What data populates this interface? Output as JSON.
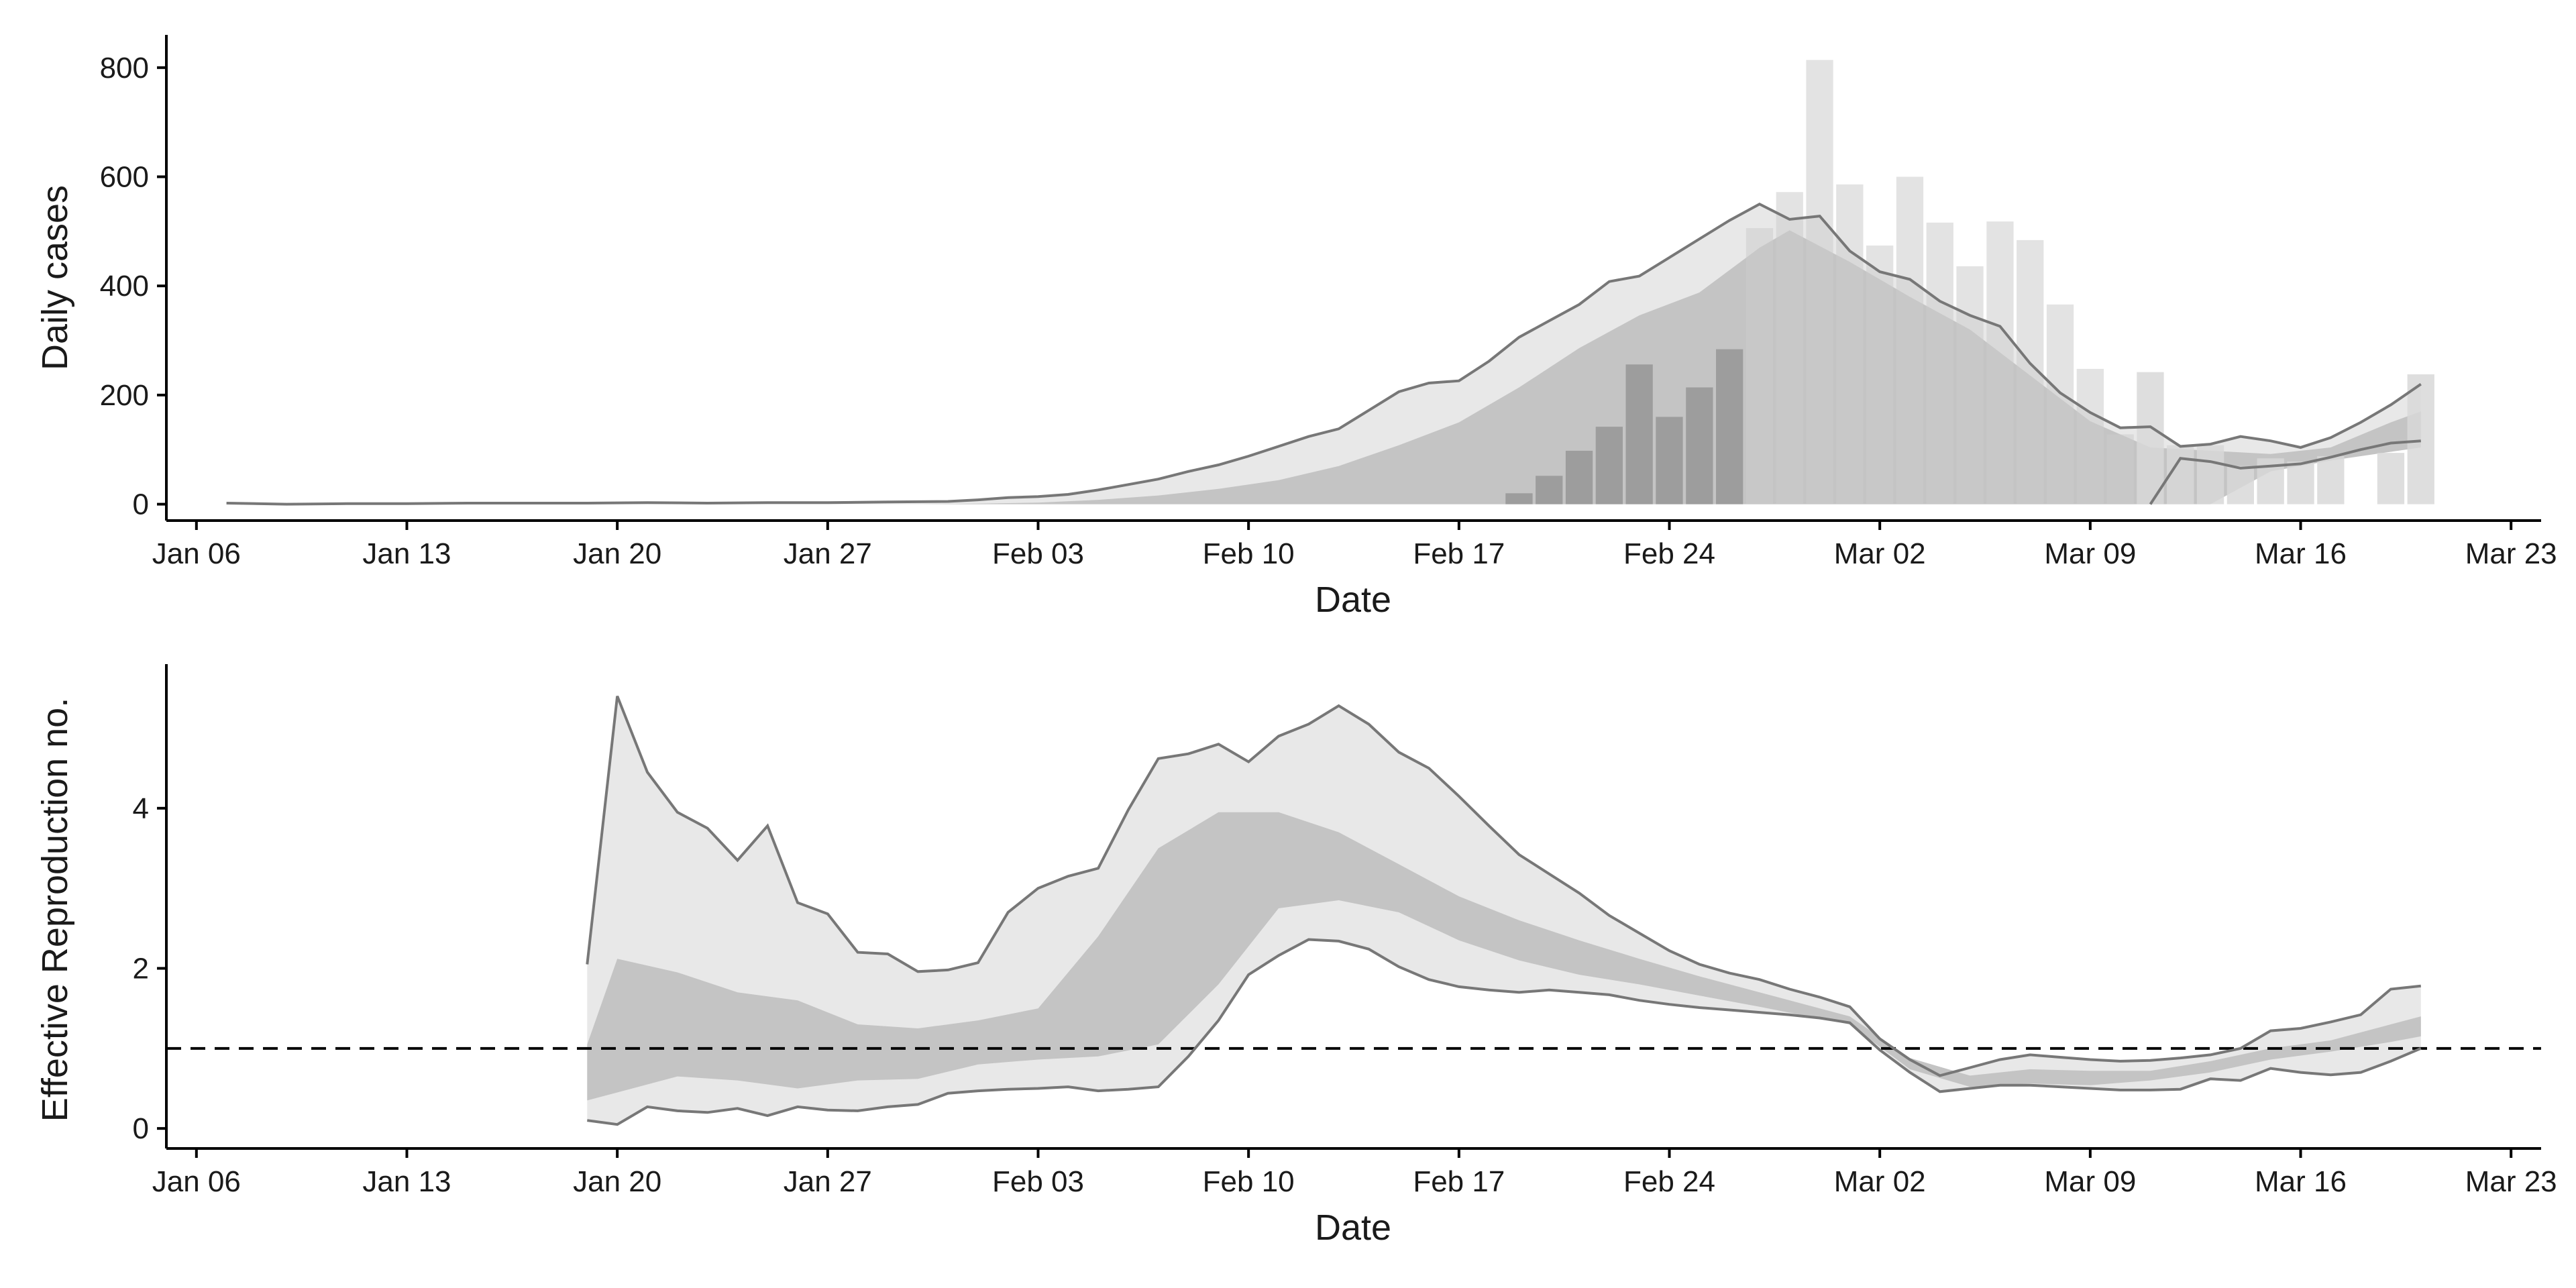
{
  "colors": {
    "background": "#ffffff",
    "axis": "#000000",
    "ci_outer": "#e8e8e8",
    "ci_inner": "#c4c4c4",
    "bound_line": "#777777",
    "bars_light": "#cccccc",
    "bars_dark": "#9d9d9d",
    "forecast": "#d8d8d8",
    "reference_line": "#000000"
  },
  "chart_data": [
    {
      "type": "bar",
      "panel": "top",
      "xlabel": "Date",
      "ylabel": "Daily cases",
      "x_type": "date",
      "xlim": [
        "2020-01-05",
        "2020-03-24"
      ],
      "ylim": [
        -30,
        860
      ],
      "x_ticks": [
        "2020-01-06",
        "2020-01-13",
        "2020-01-20",
        "2020-01-27",
        "2020-02-03",
        "2020-02-10",
        "2020-02-17",
        "2020-02-24",
        "2020-03-02",
        "2020-03-09",
        "2020-03-16",
        "2020-03-23"
      ],
      "x_tick_labels": [
        "Jan 06",
        "Jan 13",
        "Jan 20",
        "Jan 27",
        "Feb 03",
        "Feb 10",
        "Feb 17",
        "Feb 24",
        "Mar 02",
        "Mar 09",
        "Mar 16",
        "Mar 23"
      ],
      "y_ticks": [
        0,
        200,
        400,
        600,
        800
      ],
      "y_tick_labels": [
        "0",
        "200",
        "400",
        "600",
        "800"
      ],
      "grid": false,
      "legend": "none",
      "bars": {
        "dates": [
          "2020-02-19",
          "2020-02-20",
          "2020-02-21",
          "2020-02-22",
          "2020-02-23",
          "2020-02-24",
          "2020-02-25",
          "2020-02-26",
          "2020-02-27",
          "2020-02-28",
          "2020-02-29",
          "2020-03-01",
          "2020-03-02",
          "2020-03-03",
          "2020-03-04",
          "2020-03-05",
          "2020-03-06",
          "2020-03-07",
          "2020-03-08",
          "2020-03-09",
          "2020-03-10",
          "2020-03-11",
          "2020-03-12",
          "2020-03-13",
          "2020-03-14",
          "2020-03-15",
          "2020-03-16",
          "2020-03-17",
          "2020-03-18",
          "2020-03-19",
          "2020-03-20"
        ],
        "values": [
          20,
          52,
          98,
          142,
          256,
          160,
          214,
          284,
          506,
          572,
          814,
          586,
          474,
          600,
          516,
          436,
          518,
          484,
          366,
          248,
          128,
          242,
          108,
          108,
          70,
          84,
          78,
          88,
          0,
          94,
          238
        ]
      },
      "series": [
        {
          "role": "upper_bound",
          "x": [
            "2020-01-07",
            "2020-01-09",
            "2020-01-11",
            "2020-01-13",
            "2020-01-15",
            "2020-01-17",
            "2020-01-19",
            "2020-01-21",
            "2020-01-23",
            "2020-01-25",
            "2020-01-27",
            "2020-01-29",
            "2020-01-31",
            "2020-02-01",
            "2020-02-02",
            "2020-02-03",
            "2020-02-04",
            "2020-02-05",
            "2020-02-06",
            "2020-02-07",
            "2020-02-08",
            "2020-02-09",
            "2020-02-10",
            "2020-02-11",
            "2020-02-12",
            "2020-02-13",
            "2020-02-14",
            "2020-02-15",
            "2020-02-16",
            "2020-02-17",
            "2020-02-18",
            "2020-02-19",
            "2020-02-20",
            "2020-02-21",
            "2020-02-22",
            "2020-02-23",
            "2020-02-24",
            "2020-02-25",
            "2020-02-26",
            "2020-02-27",
            "2020-02-28",
            "2020-02-29",
            "2020-03-01",
            "2020-03-02",
            "2020-03-03",
            "2020-03-04",
            "2020-03-05",
            "2020-03-06",
            "2020-03-07",
            "2020-03-08",
            "2020-03-09",
            "2020-03-10",
            "2020-03-11",
            "2020-03-12",
            "2020-03-13",
            "2020-03-14",
            "2020-03-15",
            "2020-03-16",
            "2020-03-17",
            "2020-03-18",
            "2020-03-19",
            "2020-03-20"
          ],
          "values": [
            2,
            0,
            1,
            1,
            2,
            2,
            2,
            3,
            2,
            3,
            3,
            4,
            5,
            8,
            12,
            14,
            18,
            26,
            36,
            46,
            60,
            72,
            88,
            106,
            124,
            138,
            172,
            206,
            222,
            226,
            262,
            306,
            336,
            366,
            408,
            418,
            452,
            486,
            520,
            550,
            522,
            528,
            464,
            426,
            412,
            372,
            346,
            326,
            258,
            204,
            168,
            140,
            142,
            106,
            110,
            124,
            116,
            104,
            122,
            150,
            182,
            220
          ]
        },
        {
          "role": "lower_bound",
          "x": [
            "2020-03-11",
            "2020-03-12",
            "2020-03-13",
            "2020-03-14",
            "2020-03-15",
            "2020-03-16",
            "2020-03-17",
            "2020-03-18",
            "2020-03-19",
            "2020-03-20"
          ],
          "values": [
            0,
            84,
            78,
            66,
            70,
            74,
            86,
            100,
            112,
            116
          ]
        },
        {
          "role": "interval_50",
          "x": [
            "2020-01-30",
            "2020-02-01",
            "2020-02-03",
            "2020-02-05",
            "2020-02-07",
            "2020-02-09",
            "2020-02-11",
            "2020-02-13",
            "2020-02-15",
            "2020-02-17",
            "2020-02-19",
            "2020-02-21",
            "2020-02-23",
            "2020-02-25",
            "2020-02-27",
            "2020-02-28",
            "2020-03-01",
            "2020-03-03",
            "2020-03-05",
            "2020-03-07",
            "2020-03-09",
            "2020-03-11",
            "2020-03-13",
            "2020-03-15",
            "2020-03-17",
            "2020-03-19",
            "2020-03-20"
          ],
          "upper": [
            0,
            1,
            3,
            8,
            16,
            28,
            44,
            70,
            108,
            150,
            214,
            286,
            346,
            388,
            470,
            502,
            444,
            380,
            320,
            236,
            152,
            104,
            98,
            92,
            104,
            150,
            170
          ],
          "lower": [
            0,
            0,
            0,
            0,
            0,
            0,
            0,
            0,
            0,
            0,
            0,
            0,
            0,
            0,
            0,
            0,
            0,
            0,
            0,
            0,
            0,
            0,
            0,
            60,
            80,
            96,
            104
          ]
        }
      ]
    },
    {
      "type": "line",
      "panel": "bottom",
      "xlabel": "Date",
      "ylabel": "Effective Reproduction no.",
      "x_type": "date",
      "xlim": [
        "2020-01-05",
        "2020-03-24"
      ],
      "ylim": [
        -0.25,
        5.8
      ],
      "x_ticks": [
        "2020-01-06",
        "2020-01-13",
        "2020-01-20",
        "2020-01-27",
        "2020-02-03",
        "2020-02-10",
        "2020-02-17",
        "2020-02-24",
        "2020-03-02",
        "2020-03-09",
        "2020-03-16",
        "2020-03-23"
      ],
      "x_tick_labels": [
        "Jan 06",
        "Jan 13",
        "Jan 20",
        "Jan 27",
        "Feb 03",
        "Feb 10",
        "Feb 17",
        "Feb 24",
        "Mar 02",
        "Mar 09",
        "Mar 16",
        "Mar 23"
      ],
      "y_ticks": [
        0,
        2,
        4
      ],
      "y_tick_labels": [
        "0",
        "2",
        "4"
      ],
      "grid": false,
      "legend": "none",
      "reference_line": 1,
      "series": [
        {
          "role": "upper_bound",
          "x": [
            "2020-01-19",
            "2020-01-20",
            "2020-01-21",
            "2020-01-22",
            "2020-01-23",
            "2020-01-24",
            "2020-01-25",
            "2020-01-26",
            "2020-01-27",
            "2020-01-28",
            "2020-01-29",
            "2020-01-30",
            "2020-01-31",
            "2020-02-01",
            "2020-02-02",
            "2020-02-03",
            "2020-02-04",
            "2020-02-05",
            "2020-02-06",
            "2020-02-07",
            "2020-02-08",
            "2020-02-09",
            "2020-02-10",
            "2020-02-11",
            "2020-02-12",
            "2020-02-13",
            "2020-02-14",
            "2020-02-15",
            "2020-02-16",
            "2020-02-17",
            "2020-02-18",
            "2020-02-19",
            "2020-02-20",
            "2020-02-21",
            "2020-02-22",
            "2020-02-23",
            "2020-02-24",
            "2020-02-25",
            "2020-02-26",
            "2020-02-27",
            "2020-02-28",
            "2020-02-29",
            "2020-03-01",
            "2020-03-02",
            "2020-03-03",
            "2020-03-04",
            "2020-03-05",
            "2020-03-06",
            "2020-03-07",
            "2020-03-08",
            "2020-03-09",
            "2020-03-10",
            "2020-03-11",
            "2020-03-12",
            "2020-03-13",
            "2020-03-14",
            "2020-03-15",
            "2020-03-16",
            "2020-03-17",
            "2020-03-18",
            "2020-03-19",
            "2020-03-20"
          ],
          "values": [
            2.05,
            5.4,
            4.45,
            3.95,
            3.75,
            3.35,
            3.78,
            2.82,
            2.68,
            2.2,
            2.18,
            1.96,
            1.98,
            2.07,
            2.7,
            3.0,
            3.15,
            3.25,
            3.98,
            4.62,
            4.68,
            4.8,
            4.58,
            4.9,
            5.05,
            5.28,
            5.05,
            4.7,
            4.5,
            4.15,
            3.78,
            3.42,
            3.18,
            2.94,
            2.66,
            2.44,
            2.22,
            2.05,
            1.94,
            1.86,
            1.74,
            1.64,
            1.52,
            1.12,
            0.86,
            0.66,
            0.76,
            0.86,
            0.92,
            0.89,
            0.86,
            0.84,
            0.85,
            0.88,
            0.92,
            1.0,
            1.22,
            1.25,
            1.33,
            1.42,
            1.74,
            1.78
          ]
        },
        {
          "role": "lower_bound",
          "x": [
            "2020-01-19",
            "2020-01-20",
            "2020-01-21",
            "2020-01-22",
            "2020-01-23",
            "2020-01-24",
            "2020-01-25",
            "2020-01-26",
            "2020-01-27",
            "2020-01-28",
            "2020-01-29",
            "2020-01-30",
            "2020-01-31",
            "2020-02-01",
            "2020-02-02",
            "2020-02-03",
            "2020-02-04",
            "2020-02-05",
            "2020-02-06",
            "2020-02-07",
            "2020-02-08",
            "2020-02-09",
            "2020-02-10",
            "2020-02-11",
            "2020-02-12",
            "2020-02-13",
            "2020-02-14",
            "2020-02-15",
            "2020-02-16",
            "2020-02-17",
            "2020-02-18",
            "2020-02-19",
            "2020-02-20",
            "2020-02-21",
            "2020-02-22",
            "2020-02-23",
            "2020-02-24",
            "2020-02-25",
            "2020-02-26",
            "2020-02-27",
            "2020-02-28",
            "2020-02-29",
            "2020-03-01",
            "2020-03-02",
            "2020-03-03",
            "2020-03-04",
            "2020-03-05",
            "2020-03-06",
            "2020-03-07",
            "2020-03-08",
            "2020-03-09",
            "2020-03-10",
            "2020-03-11",
            "2020-03-12",
            "2020-03-13",
            "2020-03-14",
            "2020-03-15",
            "2020-03-16",
            "2020-03-17",
            "2020-03-18",
            "2020-03-19",
            "2020-03-20"
          ],
          "values": [
            0.1,
            0.05,
            0.27,
            0.22,
            0.2,
            0.25,
            0.16,
            0.27,
            0.23,
            0.22,
            0.27,
            0.3,
            0.44,
            0.47,
            0.49,
            0.5,
            0.52,
            0.47,
            0.49,
            0.52,
            0.9,
            1.35,
            1.92,
            2.16,
            2.36,
            2.34,
            2.24,
            2.02,
            1.86,
            1.77,
            1.73,
            1.7,
            1.73,
            1.7,
            1.67,
            1.6,
            1.55,
            1.51,
            1.48,
            1.45,
            1.42,
            1.38,
            1.32,
            0.98,
            0.7,
            0.46,
            0.5,
            0.54,
            0.54,
            0.52,
            0.5,
            0.48,
            0.48,
            0.49,
            0.62,
            0.6,
            0.75,
            0.7,
            0.67,
            0.7,
            0.84,
            1.0
          ]
        },
        {
          "role": "interval_50",
          "x": [
            "2020-01-19",
            "2020-01-20",
            "2020-01-22",
            "2020-01-24",
            "2020-01-26",
            "2020-01-28",
            "2020-01-30",
            "2020-02-01",
            "2020-02-03",
            "2020-02-05",
            "2020-02-07",
            "2020-02-09",
            "2020-02-11",
            "2020-02-13",
            "2020-02-15",
            "2020-02-17",
            "2020-02-19",
            "2020-02-21",
            "2020-02-23",
            "2020-02-25",
            "2020-02-27",
            "2020-03-01",
            "2020-03-03",
            "2020-03-05",
            "2020-03-07",
            "2020-03-09",
            "2020-03-11",
            "2020-03-13",
            "2020-03-15",
            "2020-03-17",
            "2020-03-19",
            "2020-03-20"
          ],
          "upper": [
            1.05,
            2.12,
            1.95,
            1.7,
            1.6,
            1.3,
            1.25,
            1.35,
            1.5,
            2.4,
            3.5,
            3.95,
            3.95,
            3.7,
            3.3,
            2.9,
            2.6,
            2.35,
            2.12,
            1.9,
            1.7,
            1.4,
            0.88,
            0.66,
            0.74,
            0.72,
            0.72,
            0.84,
            1.0,
            1.1,
            1.3,
            1.4
          ],
          "lower": [
            0.35,
            0.45,
            0.65,
            0.6,
            0.5,
            0.6,
            0.62,
            0.8,
            0.86,
            0.9,
            1.05,
            1.8,
            2.75,
            2.85,
            2.7,
            2.35,
            2.1,
            1.92,
            1.8,
            1.66,
            1.52,
            1.3,
            0.74,
            0.52,
            0.56,
            0.54,
            0.6,
            0.7,
            0.86,
            0.96,
            1.08,
            1.15
          ]
        }
      ]
    }
  ]
}
